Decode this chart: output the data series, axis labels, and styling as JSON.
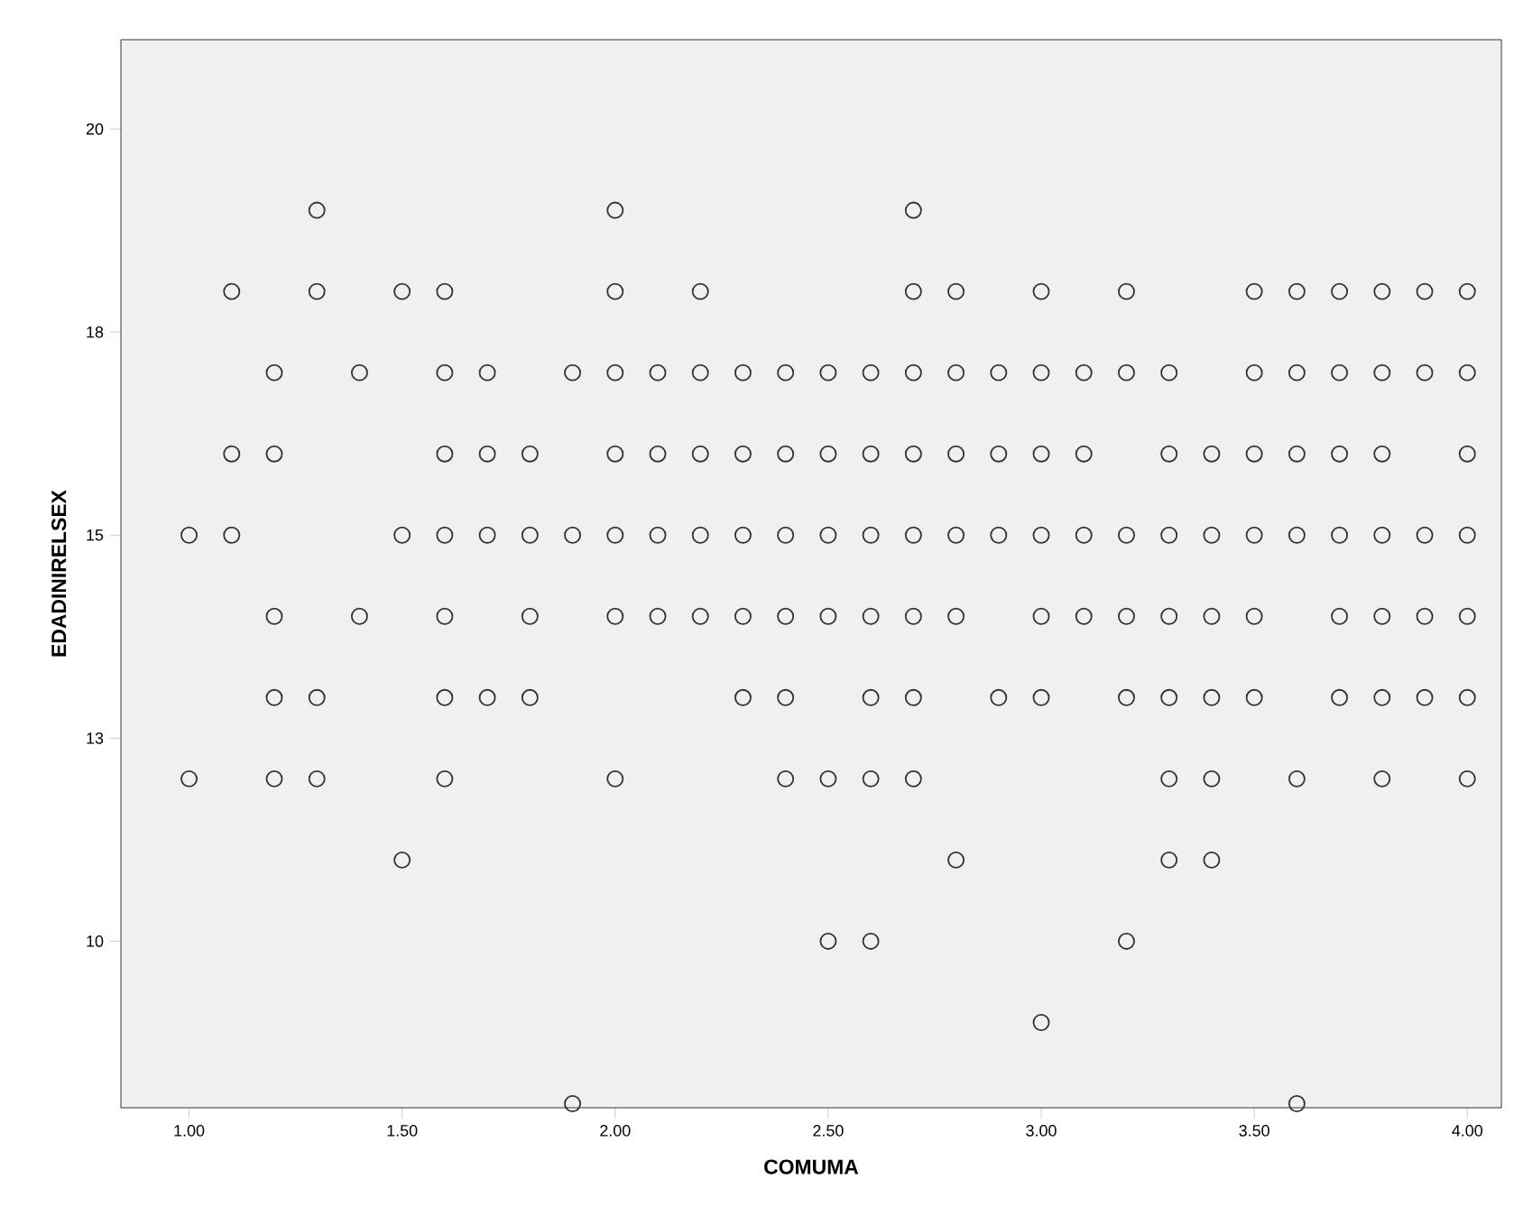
{
  "chart_data": {
    "type": "scatter",
    "xlabel": "COMUMA",
    "ylabel": "EDADINIRELSEX",
    "xlim": [
      0.84,
      4.08
    ],
    "ylim": [
      7.95,
      21.1
    ],
    "xticks": [
      {
        "value": 1,
        "label": "1.00"
      },
      {
        "value": 1.5,
        "label": "1.50"
      },
      {
        "value": 2,
        "label": "2.00"
      },
      {
        "value": 2.5,
        "label": "2.50"
      },
      {
        "value": 3,
        "label": "3.00"
      },
      {
        "value": 3.5,
        "label": "3.50"
      },
      {
        "value": 4,
        "label": "4.00"
      }
    ],
    "yticks": [
      10,
      {
        "value": 12.5,
        "label": "13"
      },
      15,
      {
        "value": 17.5,
        "label": "18"
      },
      20
    ],
    "marker": "circle",
    "series": [
      {
        "color": "#333333",
        "x": [
          1.3,
          2.0,
          2.7,
          1.1,
          1.3,
          1.5,
          1.6,
          2.0,
          2.2,
          2.7,
          2.8,
          3.0,
          3.2,
          3.5,
          3.6,
          3.7,
          3.8,
          3.9,
          4.0,
          1.2,
          1.4,
          1.6,
          1.7,
          1.9,
          2.0,
          2.1,
          2.2,
          2.3,
          2.4,
          2.5,
          2.6,
          2.7,
          2.8,
          2.9,
          3.0,
          3.1,
          3.2,
          3.3,
          3.5,
          3.6,
          3.7,
          3.8,
          3.9,
          4.0,
          1.1,
          1.2,
          1.6,
          1.7,
          1.8,
          2.0,
          2.1,
          2.2,
          2.3,
          2.4,
          2.5,
          2.6,
          2.7,
          2.8,
          2.9,
          3.0,
          3.1,
          3.3,
          3.4,
          3.5,
          3.6,
          3.7,
          3.8,
          4.0,
          1.0,
          1.1,
          1.5,
          1.6,
          1.7,
          1.8,
          1.9,
          2.0,
          2.1,
          2.2,
          2.3,
          2.4,
          2.5,
          2.6,
          2.7,
          2.8,
          2.9,
          3.0,
          3.1,
          3.2,
          3.3,
          3.4,
          3.5,
          3.6,
          3.7,
          3.8,
          3.9,
          4.0,
          1.2,
          1.4,
          1.6,
          1.8,
          2.0,
          2.1,
          2.2,
          2.3,
          2.4,
          2.5,
          2.6,
          2.7,
          2.8,
          3.0,
          3.1,
          3.2,
          3.3,
          3.4,
          3.5,
          3.7,
          3.8,
          3.9,
          4.0,
          1.2,
          1.3,
          1.6,
          1.7,
          1.8,
          2.3,
          2.4,
          2.6,
          2.7,
          2.9,
          3.0,
          3.2,
          3.3,
          3.4,
          3.5,
          3.7,
          3.8,
          3.9,
          4.0,
          1.0,
          1.2,
          1.3,
          1.6,
          2.0,
          2.4,
          2.5,
          2.6,
          2.7,
          3.3,
          3.4,
          3.6,
          3.8,
          4.0,
          1.5,
          2.8,
          3.3,
          3.4,
          2.5,
          2.6,
          3.2,
          3.0,
          1.9,
          3.6
        ],
        "values": [
          19,
          19,
          19,
          18,
          18,
          18,
          18,
          18,
          18,
          18,
          18,
          18,
          18,
          18,
          18,
          18,
          18,
          18,
          18,
          17,
          17,
          17,
          17,
          17,
          17,
          17,
          17,
          17,
          17,
          17,
          17,
          17,
          17,
          17,
          17,
          17,
          17,
          17,
          17,
          17,
          17,
          17,
          17,
          17,
          16,
          16,
          16,
          16,
          16,
          16,
          16,
          16,
          16,
          16,
          16,
          16,
          16,
          16,
          16,
          16,
          16,
          16,
          16,
          16,
          16,
          16,
          16,
          16,
          15,
          15,
          15,
          15,
          15,
          15,
          15,
          15,
          15,
          15,
          15,
          15,
          15,
          15,
          15,
          15,
          15,
          15,
          15,
          15,
          15,
          15,
          15,
          15,
          15,
          15,
          15,
          15,
          14,
          14,
          14,
          14,
          14,
          14,
          14,
          14,
          14,
          14,
          14,
          14,
          14,
          14,
          14,
          14,
          14,
          14,
          14,
          14,
          14,
          14,
          14,
          13,
          13,
          13,
          13,
          13,
          13,
          13,
          13,
          13,
          13,
          13,
          13,
          13,
          13,
          13,
          13,
          13,
          13,
          13,
          12,
          12,
          12,
          12,
          12,
          12,
          12,
          12,
          12,
          12,
          12,
          12,
          12,
          12,
          11,
          11,
          11,
          11,
          10,
          10,
          10,
          9,
          8,
          8
        ]
      }
    ]
  }
}
